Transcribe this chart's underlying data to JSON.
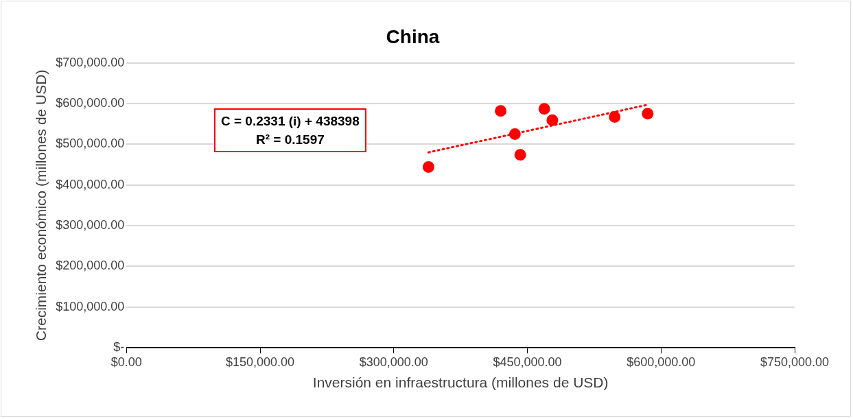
{
  "chart_data": {
    "type": "scatter",
    "title": "China",
    "xlabel": "Inversión en infraestructura (millones de USD)",
    "ylabel": "Crecimiento económico (millones de USD)",
    "x": [
      339000,
      420000,
      436000,
      442000,
      469000,
      478000,
      548000,
      585000
    ],
    "series": [
      {
        "color": "#ff0000",
        "marker": "circle",
        "values": [
          444000,
          582000,
          525000,
          474000,
          587000,
          559000,
          567000,
          575000
        ]
      },
      {
        "type": "line",
        "color": "#ff0000",
        "marker": "none",
        "line_style": "dotted",
        "x": [
          339000,
          583000
        ],
        "values": [
          480000,
          596000
        ]
      }
    ],
    "xlim": [
      0,
      750000
    ],
    "ylim": [
      0,
      700000
    ],
    "xticks": [
      {
        "value": 0,
        "label": "$0.00"
      },
      {
        "value": 150000,
        "label": "$150,000.00"
      },
      {
        "value": 300000,
        "label": "$300,000.00"
      },
      {
        "value": 450000,
        "label": "$450,000.00"
      },
      {
        "value": 600000,
        "label": "$600,000.00"
      },
      {
        "value": 750000,
        "label": "$750,000.00"
      }
    ],
    "yticks": [
      {
        "value": 0,
        "label": "$-"
      },
      {
        "value": 100000,
        "label": "$100,000.00"
      },
      {
        "value": 200000,
        "label": "$200,000.00"
      },
      {
        "value": 300000,
        "label": "$300,000.00"
      },
      {
        "value": 400000,
        "label": "$400,000.00"
      },
      {
        "value": 500000,
        "label": "$500,000.00"
      },
      {
        "value": 600000,
        "label": "$600,000.00"
      },
      {
        "value": 700000,
        "label": "$700,000.00"
      }
    ],
    "annotations": [
      "C = 0.2331 (i) + 438398\nR² = 0.1597"
    ],
    "grid": "y",
    "legend": false
  }
}
